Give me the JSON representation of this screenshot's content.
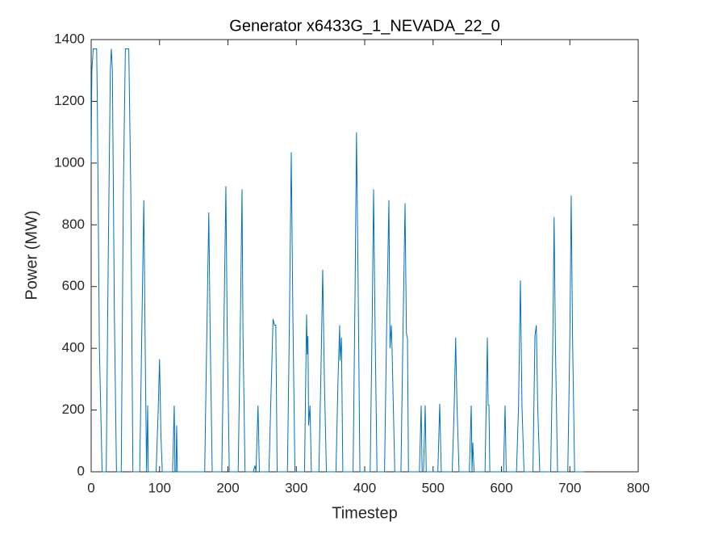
{
  "chart_data": {
    "type": "line",
    "title": "Generator x6433G_1_NEVADA_22_0",
    "x_label": "Timestep",
    "y_label": "Power (MW)",
    "color": "#0072bd",
    "x": [
      0,
      1,
      3,
      8,
      9,
      12,
      16,
      22,
      25,
      28,
      29.5,
      31,
      34,
      37,
      44,
      47,
      50,
      55,
      58,
      61,
      71,
      74,
      77,
      79,
      81,
      82.6,
      83.5,
      95,
      98,
      100,
      102,
      104,
      119,
      121.5,
      122.5,
      124,
      125,
      126,
      166,
      169,
      172,
      174,
      177,
      191,
      194,
      197,
      199,
      202,
      215,
      218,
      220.6,
      222,
      225,
      237,
      239.5,
      241,
      244,
      246,
      260,
      263,
      266,
      268,
      270,
      272,
      287,
      290,
      292.6,
      295,
      298,
      312,
      315,
      316,
      317,
      318,
      320,
      322,
      333,
      336,
      338.6,
      341,
      344,
      358,
      361,
      363.4,
      364,
      366,
      368,
      383,
      386,
      388,
      390,
      393,
      408,
      411,
      413,
      415,
      418,
      429,
      432,
      435.4,
      437,
      438.9,
      440,
      444,
      453,
      456,
      459,
      461,
      462.6,
      464,
      480,
      482.6,
      484,
      486,
      488.5,
      490,
      507,
      509.7,
      512,
      528,
      531,
      533,
      535,
      538,
      553,
      555.8,
      557,
      558,
      560,
      576,
      579.4,
      580.5,
      581.7,
      583,
      603,
      605.3,
      607,
      622,
      625,
      627.7,
      630,
      633,
      646,
      649,
      651,
      653,
      656,
      672,
      675,
      677,
      679,
      682,
      697,
      700,
      702,
      704,
      707,
      720
    ],
    "values": [
      1000,
      1300,
      1370,
      1370,
      1200,
      400,
      0,
      0,
      700,
      1300,
      1370,
      1300,
      500,
      0,
      0,
      900,
      1370,
      1370,
      900,
      0,
      0,
      450,
      880,
      400,
      0,
      215,
      0,
      0,
      200,
      365,
      120,
      0,
      0,
      215,
      0,
      0,
      150,
      0,
      0,
      430,
      840,
      450,
      0,
      0,
      450,
      925,
      450,
      0,
      0,
      450,
      915,
      450,
      0,
      0,
      20,
      0,
      215,
      0,
      0,
      250,
      495,
      475,
      475,
      0,
      0,
      500,
      1035,
      500,
      0,
      0,
      510,
      380,
      440,
      150,
      215,
      0,
      0,
      320,
      655,
      300,
      0,
      0,
      300,
      475,
      360,
      435,
      0,
      0,
      600,
      1100,
      700,
      0,
      0,
      500,
      915,
      500,
      0,
      0,
      450,
      880,
      400,
      475,
      400,
      0,
      0,
      450,
      870,
      450,
      430,
      0,
      0,
      215,
      0,
      0,
      215,
      0,
      0,
      220,
      0,
      0,
      220,
      435,
      215,
      0,
      0,
      215,
      0,
      95,
      0,
      0,
      435,
      215,
      215,
      0,
      0,
      215,
      0,
      0,
      215,
      620,
      215,
      0,
      0,
      440,
      475,
      215,
      0,
      0,
      400,
      825,
      400,
      0,
      0,
      430,
      895,
      430,
      0,
      0
    ],
    "xlim": [
      0,
      800
    ],
    "xticks": [
      0,
      100,
      200,
      300,
      400,
      500,
      600,
      700,
      800
    ],
    "ylim": [
      0,
      1400
    ],
    "yticks": [
      0,
      200,
      400,
      600,
      800,
      1000,
      1200,
      1400
    ],
    "grid": false
  }
}
